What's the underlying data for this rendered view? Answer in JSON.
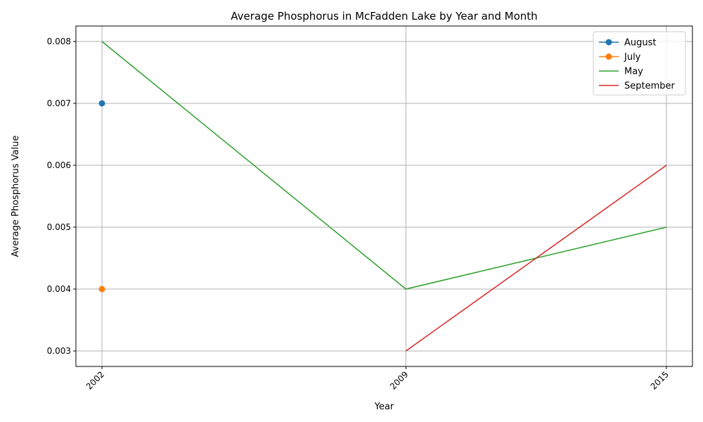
{
  "chart_data": {
    "type": "line",
    "title": "Average Phosphorus in McFadden Lake by Year and Month",
    "xlabel": "Year",
    "ylabel": "Average Phosphorus Value",
    "x_ticks": [
      "2002",
      "2009",
      "2015"
    ],
    "y_ticks": [
      "0.003",
      "0.004",
      "0.005",
      "0.006",
      "0.007",
      "0.008"
    ],
    "xlim": [
      2001.4,
      2015.6
    ],
    "ylim": [
      0.00275,
      0.00825
    ],
    "grid": true,
    "legend_position": "top-right",
    "series": [
      {
        "name": "August",
        "color": "#1f77b4",
        "marker": "circle",
        "points": [
          [
            2002,
            0.007
          ]
        ]
      },
      {
        "name": "July",
        "color": "#ff7f0e",
        "marker": "circle",
        "points": [
          [
            2002,
            0.004
          ]
        ]
      },
      {
        "name": "May",
        "color": "#2ca02c",
        "marker": "none",
        "points": [
          [
            2002,
            0.008
          ],
          [
            2009,
            0.004
          ],
          [
            2015,
            0.005
          ]
        ]
      },
      {
        "name": "September",
        "color": "#d62728",
        "marker": "none",
        "points": [
          [
            2009,
            0.003
          ],
          [
            2015,
            0.006
          ]
        ]
      }
    ]
  }
}
